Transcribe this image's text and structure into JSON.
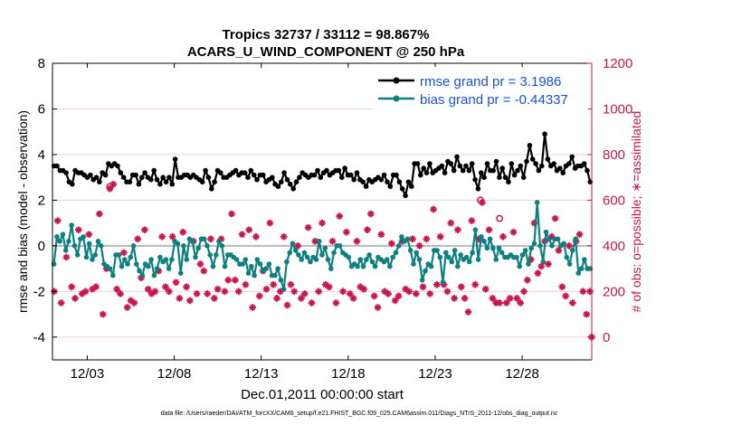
{
  "chart_data": {
    "type": "line",
    "title_line1": "Tropics 32737 / 33112 = 98.867%",
    "title_line2": "ACARS_U_WIND_COMPONENT @ 250 hPa",
    "ylabel_left": "rmse and bias (model - observation)",
    "ylabel_right": "# of obs: o=possible; ∗=assimilated",
    "xlabel": "Dec.01,2011 00:00:00 start",
    "footer": "data file: /Users/raeder/DAI/ATM_forcXX/CAM6_setup/f.e21.FHIST_BGC.f09_025.CAM6assim.011/Diags_NTrS_2011-12/obs_diag_output.nc",
    "x_range": [
      0,
      31
    ],
    "x_ticks": [
      {
        "value": 2,
        "label": "12/03"
      },
      {
        "value": 7,
        "label": "12/08"
      },
      {
        "value": 12,
        "label": "12/13"
      },
      {
        "value": 17,
        "label": "12/18"
      },
      {
        "value": 22,
        "label": "12/23"
      },
      {
        "value": 27,
        "label": "12/28"
      }
    ],
    "y_left_range": [
      -5,
      8
    ],
    "y_left_ticks": [
      "-4",
      "-2",
      "0",
      "2",
      "4",
      "6",
      "8"
    ],
    "y_right_range": [
      -100,
      1200
    ],
    "y_right_ticks": [
      "0",
      "200",
      "400",
      "600",
      "800",
      "1000",
      "1200"
    ],
    "legend": [
      {
        "name": "rmse grand pr = 3.1986",
        "color": "#000000"
      },
      {
        "name": "bias grand pr = -0.44337",
        "color": "#0e8080"
      }
    ],
    "series": [
      {
        "name": "rmse",
        "color": "#000000",
        "values": [
          3.5,
          3.5,
          3.3,
          3.3,
          3.2,
          2.8,
          2.7,
          3.3,
          3.2,
          3.2,
          3.1,
          3.0,
          3.1,
          2.9,
          3.0,
          2.8,
          3.2,
          3.1,
          3.6,
          3.5,
          3.6,
          3.5,
          3.2,
          3.0,
          2.8,
          2.8,
          3.1,
          3.1,
          2.7,
          3.0,
          3.2,
          3.0,
          2.9,
          3.3,
          2.9,
          2.7,
          3.0,
          2.8,
          3.0,
          2.7,
          3.8,
          3.0,
          3.0,
          3.1,
          3.1,
          3.0,
          3.1,
          3.0,
          2.9,
          2.8,
          3.3,
          3.0,
          2.5,
          2.8,
          3.3,
          3.2,
          3.0,
          3.0,
          3.1,
          3.2,
          3.3,
          3.1,
          3.2,
          3.2,
          3.0,
          3.3,
          3.1,
          2.9,
          3.1,
          3.1,
          2.8,
          2.9,
          3.0,
          2.7,
          2.6,
          2.8,
          3.2,
          2.9,
          2.7,
          2.5,
          2.8,
          3.0,
          3.2,
          3.1,
          3.0,
          3.1,
          3.1,
          3.3,
          3.0,
          3.2,
          3.3,
          3.1,
          3.2,
          3.3,
          3.3,
          3.0,
          3.4,
          3.1,
          3.1,
          2.9,
          3.2,
          2.9,
          2.8,
          2.6,
          2.9,
          2.8,
          2.9,
          3.0,
          2.9,
          3.1,
          2.8,
          2.6,
          3.1,
          3.1,
          2.8,
          2.5,
          2.2,
          2.8,
          2.6,
          3.6,
          3.6,
          3.1,
          3.4,
          3.2,
          3.6,
          3.2,
          3.3,
          3.4,
          3.5,
          3.2,
          3.7,
          3.6,
          3.3,
          3.9,
          3.5,
          3.3,
          3.5,
          3.3,
          3.6,
          2.9,
          2.5,
          3.2,
          3.0,
          3.6,
          3.3,
          3.3,
          3.7,
          3.0,
          3.4,
          3.0,
          2.8,
          3.6,
          3.1,
          3.3,
          3.5,
          3.0,
          3.7,
          4.4,
          3.8,
          3.6,
          3.3,
          3.5,
          4.9,
          3.8,
          3.5,
          3.6,
          3.3,
          3.4,
          3.2,
          3.5,
          3.6,
          3.9,
          3.4,
          3.5,
          3.5,
          3.6,
          3.3,
          2.8
        ]
      },
      {
        "name": "bias",
        "color": "#0e8080",
        "values": [
          -0.8,
          0.4,
          0.2,
          0.5,
          -0.2,
          0.2,
          0.9,
          0.0,
          -0.4,
          0.3,
          0.4,
          -0.5,
          0.1,
          -0.6,
          -0.4,
          0.2,
          0.0,
          -0.8,
          -0.9,
          -1.0,
          -1.3,
          -0.4,
          -0.4,
          -0.9,
          -0.6,
          -0.8,
          -0.5,
          0.0,
          -0.8,
          -1.1,
          -1.3,
          -0.8,
          -0.9,
          -0.6,
          -1.3,
          -1.0,
          -0.5,
          -0.7,
          -0.6,
          -1.0,
          -0.6,
          0.2,
          0.1,
          -1.2,
          0.0,
          -0.6,
          0.3,
          0.2,
          -0.5,
          -0.1,
          0.3,
          0.3,
          0.0,
          -0.4,
          -0.9,
          -0.4,
          0.2,
          0.0,
          -0.9,
          -0.4,
          -0.4,
          -0.5,
          -0.6,
          -0.8,
          -0.8,
          -0.6,
          -1.2,
          -0.9,
          -1.3,
          -0.6,
          -0.8,
          -1.1,
          -1.0,
          -0.8,
          -1.3,
          -1.3,
          -1.0,
          -1.5,
          -1.9,
          -0.7,
          -0.3,
          0.1,
          -0.2,
          -0.4,
          -0.6,
          -0.3,
          -0.5,
          -0.7,
          -0.5,
          -0.6,
          0.2,
          -0.4,
          -0.1,
          -0.6,
          -1.0,
          -0.3,
          0.0,
          0.0,
          -0.3,
          -0.4,
          -0.5,
          -0.9,
          -0.8,
          -0.9,
          -0.6,
          -0.9,
          -0.6,
          -0.4,
          -0.7,
          -0.9,
          -0.5,
          -0.6,
          -0.7,
          -0.6,
          -0.9,
          -0.5,
          -0.3,
          0.0,
          0.4,
          0.2,
          0.3,
          -0.2,
          -0.8,
          -0.3,
          -0.6,
          -1.5,
          -1.1,
          -0.8,
          -0.9,
          -0.2,
          -0.2,
          -0.5,
          -1.6,
          -0.3,
          -0.5,
          -0.7,
          -0.2,
          -0.9,
          -0.4,
          -0.6,
          -0.5,
          -0.7,
          -0.3,
          0.7,
          -0.6,
          0.4,
          0.2,
          -0.1,
          0.3,
          -0.1,
          -0.6,
          -0.1,
          -0.3,
          -0.5,
          -0.5,
          -0.4,
          -0.5,
          -0.5,
          -0.9,
          -0.4,
          -0.2,
          -0.8,
          -0.1,
          0.1,
          1.9,
          0.0,
          -0.7,
          0.6,
          0.3,
          0.0,
          0.3,
          0.3,
          0.0,
          0.1,
          -0.5,
          -0.8,
          -0.2,
          0.3,
          -1.2,
          -1.0,
          -0.6,
          -1.0,
          -1.0
        ]
      }
    ],
    "obs_assimilated": [
      {
        "x": 0.1,
        "y": 200
      },
      {
        "x": 0.3,
        "y": 510
      },
      {
        "x": 0.5,
        "y": 150
      },
      {
        "x": 0.8,
        "y": 350
      },
      {
        "x": 1.1,
        "y": 220
      },
      {
        "x": 1.3,
        "y": 170
      },
      {
        "x": 1.5,
        "y": 470
      },
      {
        "x": 1.7,
        "y": 190
      },
      {
        "x": 1.9,
        "y": 200
      },
      {
        "x": 2.1,
        "y": 450
      },
      {
        "x": 2.3,
        "y": 210
      },
      {
        "x": 2.5,
        "y": 220
      },
      {
        "x": 2.7,
        "y": 540
      },
      {
        "x": 2.9,
        "y": 100
      },
      {
        "x": 3.1,
        "y": 300
      },
      {
        "x": 3.3,
        "y": 650
      },
      {
        "x": 3.5,
        "y": 670
      },
      {
        "x": 3.7,
        "y": 210
      },
      {
        "x": 3.9,
        "y": 190
      },
      {
        "x": 4.1,
        "y": 370
      },
      {
        "x": 4.3,
        "y": 130
      },
      {
        "x": 4.5,
        "y": 160
      },
      {
        "x": 4.7,
        "y": 150
      },
      {
        "x": 4.9,
        "y": 430
      },
      {
        "x": 5.1,
        "y": 260
      },
      {
        "x": 5.3,
        "y": 470
      },
      {
        "x": 5.5,
        "y": 210
      },
      {
        "x": 5.7,
        "y": 190
      },
      {
        "x": 5.9,
        "y": 200
      },
      {
        "x": 6.1,
        "y": 290
      },
      {
        "x": 6.3,
        "y": 440
      },
      {
        "x": 6.5,
        "y": 220
      },
      {
        "x": 6.7,
        "y": 200
      },
      {
        "x": 6.9,
        "y": 440
      },
      {
        "x": 7.1,
        "y": 240
      },
      {
        "x": 7.3,
        "y": 170
      },
      {
        "x": 7.5,
        "y": 460
      },
      {
        "x": 7.7,
        "y": 220
      },
      {
        "x": 7.9,
        "y": 160
      },
      {
        "x": 8.1,
        "y": 420
      },
      {
        "x": 8.3,
        "y": 190
      },
      {
        "x": 8.5,
        "y": 320
      },
      {
        "x": 8.7,
        "y": 290
      },
      {
        "x": 8.9,
        "y": 190
      },
      {
        "x": 9.1,
        "y": 430
      },
      {
        "x": 9.3,
        "y": 170
      },
      {
        "x": 9.5,
        "y": 210
      },
      {
        "x": 9.7,
        "y": 430
      },
      {
        "x": 9.9,
        "y": 200
      },
      {
        "x": 10.1,
        "y": 250
      },
      {
        "x": 10.3,
        "y": 540
      },
      {
        "x": 10.5,
        "y": 250
      },
      {
        "x": 10.7,
        "y": 200
      },
      {
        "x": 10.9,
        "y": 450
      },
      {
        "x": 11.1,
        "y": 230
      },
      {
        "x": 11.3,
        "y": 470
      },
      {
        "x": 11.5,
        "y": 130
      },
      {
        "x": 11.7,
        "y": 440
      },
      {
        "x": 11.9,
        "y": 180
      },
      {
        "x": 12.1,
        "y": 290
      },
      {
        "x": 12.3,
        "y": 210
      },
      {
        "x": 12.5,
        "y": 500
      },
      {
        "x": 12.7,
        "y": 230
      },
      {
        "x": 12.9,
        "y": 170
      },
      {
        "x": 13.1,
        "y": 200
      },
      {
        "x": 13.3,
        "y": 440
      },
      {
        "x": 13.5,
        "y": 140
      },
      {
        "x": 13.7,
        "y": 230
      },
      {
        "x": 13.9,
        "y": 200
      },
      {
        "x": 14.1,
        "y": 400
      },
      {
        "x": 14.3,
        "y": 170
      },
      {
        "x": 14.5,
        "y": 190
      },
      {
        "x": 14.7,
        "y": 480
      },
      {
        "x": 14.9,
        "y": 150
      },
      {
        "x": 15.1,
        "y": 420
      },
      {
        "x": 15.3,
        "y": 200
      },
      {
        "x": 15.5,
        "y": 500
      },
      {
        "x": 15.7,
        "y": 230
      },
      {
        "x": 15.9,
        "y": 220
      },
      {
        "x": 16.1,
        "y": 420
      },
      {
        "x": 16.3,
        "y": 150
      },
      {
        "x": 16.5,
        "y": 530
      },
      {
        "x": 16.7,
        "y": 200
      },
      {
        "x": 16.9,
        "y": 460
      },
      {
        "x": 17.1,
        "y": 190
      },
      {
        "x": 17.3,
        "y": 170
      },
      {
        "x": 17.5,
        "y": 420
      },
      {
        "x": 17.7,
        "y": 220
      },
      {
        "x": 17.9,
        "y": 210
      },
      {
        "x": 18.1,
        "y": 470
      },
      {
        "x": 18.3,
        "y": 540
      },
      {
        "x": 18.5,
        "y": 180
      },
      {
        "x": 18.7,
        "y": 130
      },
      {
        "x": 18.9,
        "y": 450
      },
      {
        "x": 19.1,
        "y": 200
      },
      {
        "x": 19.3,
        "y": 190
      },
      {
        "x": 19.5,
        "y": 410
      },
      {
        "x": 19.7,
        "y": 160
      },
      {
        "x": 19.9,
        "y": 180
      },
      {
        "x": 20.1,
        "y": 420
      },
      {
        "x": 20.3,
        "y": 210
      },
      {
        "x": 20.5,
        "y": 200
      },
      {
        "x": 20.7,
        "y": 430
      },
      {
        "x": 20.9,
        "y": 190
      },
      {
        "x": 21.1,
        "y": 400
      },
      {
        "x": 21.3,
        "y": 220
      },
      {
        "x": 21.5,
        "y": 430
      },
      {
        "x": 21.7,
        "y": 190
      },
      {
        "x": 21.9,
        "y": 560
      },
      {
        "x": 22.1,
        "y": 230
      },
      {
        "x": 22.3,
        "y": 440
      },
      {
        "x": 22.5,
        "y": 230
      },
      {
        "x": 22.7,
        "y": 200
      },
      {
        "x": 22.9,
        "y": 500
      },
      {
        "x": 23.1,
        "y": 170
      },
      {
        "x": 23.3,
        "y": 470
      },
      {
        "x": 23.5,
        "y": 220
      },
      {
        "x": 23.7,
        "y": 170
      },
      {
        "x": 23.9,
        "y": 110
      },
      {
        "x": 24.1,
        "y": 510
      },
      {
        "x": 24.3,
        "y": 230
      },
      {
        "x": 24.5,
        "y": 430
      },
      {
        "x": 24.7,
        "y": 590
      },
      {
        "x": 24.9,
        "y": 210
      },
      {
        "x": 25.1,
        "y": 470
      },
      {
        "x": 25.3,
        "y": 170
      },
      {
        "x": 25.5,
        "y": 150
      },
      {
        "x": 25.7,
        "y": 150
      },
      {
        "x": 25.9,
        "y": 440
      },
      {
        "x": 26.1,
        "y": 150
      },
      {
        "x": 26.3,
        "y": 170
      },
      {
        "x": 26.5,
        "y": 460
      },
      {
        "x": 26.7,
        "y": 170
      },
      {
        "x": 26.9,
        "y": 150
      },
      {
        "x": 27.1,
        "y": 200
      },
      {
        "x": 27.3,
        "y": 250
      },
      {
        "x": 27.5,
        "y": 340
      },
      {
        "x": 27.7,
        "y": 500
      },
      {
        "x": 27.9,
        "y": 280
      },
      {
        "x": 28.1,
        "y": 310
      },
      {
        "x": 28.3,
        "y": 420
      },
      {
        "x": 28.5,
        "y": 320
      },
      {
        "x": 28.7,
        "y": 440
      },
      {
        "x": 28.9,
        "y": 520
      },
      {
        "x": 29.1,
        "y": 380
      },
      {
        "x": 29.3,
        "y": 220
      },
      {
        "x": 29.5,
        "y": 180
      },
      {
        "x": 29.7,
        "y": 400
      },
      {
        "x": 29.9,
        "y": 150
      },
      {
        "x": 30.1,
        "y": 420
      },
      {
        "x": 30.3,
        "y": 450
      },
      {
        "x": 30.5,
        "y": 200
      },
      {
        "x": 30.7,
        "y": 100
      },
      {
        "x": 30.9,
        "y": 200
      },
      {
        "x": 31.0,
        "y": 0
      }
    ],
    "obs_possible_only": [
      {
        "x": 3.3,
        "y": 660
      },
      {
        "x": 24.6,
        "y": 600
      },
      {
        "x": 25.7,
        "y": 520
      }
    ]
  }
}
